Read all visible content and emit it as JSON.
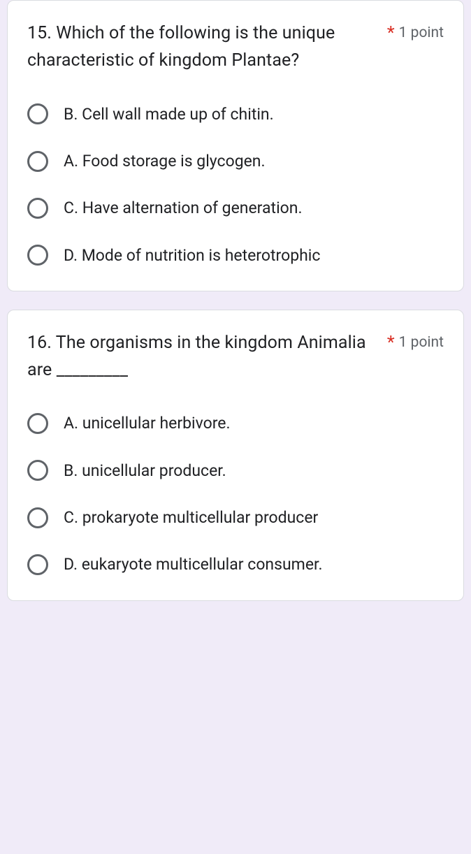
{
  "colors": {
    "page_background": "#f0ebf8",
    "card_background": "#ffffff",
    "card_border": "#dadce0",
    "text_primary": "#202124",
    "text_secondary": "#5f6368",
    "required_asterisk": "#d93025",
    "radio_border": "#5f6368"
  },
  "typography": {
    "question_fontsize": 25,
    "option_fontsize": 23,
    "points_fontsize": 21
  },
  "questions": [
    {
      "text": "15.  Which of the following is the unique characteristic of kingdom Plantae?",
      "required_marker": "*",
      "points": "1 point",
      "options": [
        {
          "label": "B. Cell wall made up of chitin."
        },
        {
          "label": "A. Food storage is glycogen."
        },
        {
          "label": "C. Have alternation of generation."
        },
        {
          "label": "D. Mode of nutrition is heterotrophic"
        }
      ]
    },
    {
      "text": "16. The organisms in the kingdom Animalia are _________",
      "required_marker": "*",
      "points": "1 point",
      "options": [
        {
          "label": "A. unicellular herbivore."
        },
        {
          "label": "B. unicellular producer."
        },
        {
          "label": "C. prokaryote multicellular producer"
        },
        {
          "label": "D. eukaryote multicellular consumer."
        }
      ]
    }
  ]
}
